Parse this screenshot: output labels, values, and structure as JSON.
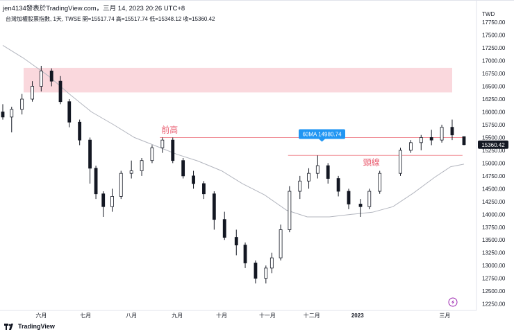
{
  "header": {
    "title": "jen4134發表於TradingView.com，三月 14, 2023 20:26 UTC+8",
    "symbol_line": "台灣加權股票指數, 1天, TWSE  開=15517.74  高=15517.74  低=15348.12  收=15360.42"
  },
  "footer": {
    "brand": "TradingView",
    "logo_icon": "tradingview-logo-icon"
  },
  "colors": {
    "up": "#131722",
    "down": "#131722",
    "zone": "#f8c8ce",
    "ma_line": "#b2b5be",
    "red_line": "#f08c94",
    "label_text": "#e95a6e",
    "ma_badge": "#2196f3",
    "price_badge": "#131722"
  },
  "chart_data": {
    "type": "candlestick",
    "currency_label": "TWD",
    "y_range": [
      12150,
      18050
    ],
    "y_ticks": [
      "17750.00",
      "17500.00",
      "17250.00",
      "17000.00",
      "16750.00",
      "16500.00",
      "16250.00",
      "16000.00",
      "15750.00",
      "15500.00",
      "15250.00",
      "15000.00",
      "14750.00",
      "14500.00",
      "14250.00",
      "14000.00",
      "13750.00",
      "13500.00",
      "13250.00",
      "13000.00",
      "12750.00",
      "12500.00",
      "12250.00"
    ],
    "y_tick_values": [
      17750,
      17500,
      17250,
      17000,
      16750,
      16500,
      16250,
      16000,
      15750,
      15500,
      15250,
      15000,
      14750,
      14500,
      14250,
      14000,
      13750,
      13500,
      13250,
      13000,
      12750,
      12500,
      12250
    ],
    "x_labels": [
      "六月",
      "七月",
      "八月",
      "九月",
      "十月",
      "十一月",
      "十二月",
      "2023",
      "三月"
    ],
    "x_label_dates": [
      "2022-06-01",
      "2022-07-01",
      "2022-08-01",
      "2022-09-01",
      "2022-10-01",
      "2022-11-01",
      "2022-12-01",
      "2023-01-01",
      "2023-03-01"
    ],
    "date_range": [
      "2022-05-06",
      "2023-03-14"
    ],
    "zone": {
      "from": 16380,
      "to": 16860,
      "start": "2022-05-06",
      "end": "2023-03-14"
    },
    "resistance_line": {
      "value": 15500,
      "start": "2022-08-25",
      "end": "2023-03-14",
      "label": "前高"
    },
    "neckline": {
      "value": 15150,
      "start": "2022-11-15",
      "end": "2023-03-13",
      "label": "頸線"
    },
    "ma": {
      "name": "60MA",
      "value": 14980.74,
      "label": "60MA 14980.74",
      "points": [
        [
          "2022-05-06",
          17300
        ],
        [
          "2022-05-20",
          17050
        ],
        [
          "2022-06-06",
          16700
        ],
        [
          "2022-06-20",
          16350
        ],
        [
          "2022-07-05",
          16000
        ],
        [
          "2022-07-20",
          15750
        ],
        [
          "2022-08-03",
          15500
        ],
        [
          "2022-08-18",
          15330
        ],
        [
          "2022-09-01",
          15170
        ],
        [
          "2022-09-15",
          15040
        ],
        [
          "2022-10-01",
          14850
        ],
        [
          "2022-10-15",
          14600
        ],
        [
          "2022-10-30",
          14380
        ],
        [
          "2022-11-14",
          14080
        ],
        [
          "2022-11-28",
          13950
        ],
        [
          "2022-12-13",
          13950
        ],
        [
          "2022-12-28",
          14000
        ],
        [
          "2023-01-11",
          14040
        ],
        [
          "2023-01-25",
          14150
        ],
        [
          "2023-02-08",
          14420
        ],
        [
          "2023-02-22",
          14720
        ],
        [
          "2023-03-05",
          14930
        ],
        [
          "2023-03-14",
          14980
        ]
      ]
    },
    "last_price": {
      "value": 15360.42,
      "label": "15360.42"
    },
    "ohlc": [
      [
        "2022-05-06",
        16000,
        16150,
        15850,
        15900
      ],
      [
        "2022-05-12",
        15900,
        16100,
        15600,
        16050
      ],
      [
        "2022-05-19",
        16050,
        16350,
        15950,
        16250
      ],
      [
        "2022-05-26",
        16250,
        16600,
        16200,
        16500
      ],
      [
        "2022-06-01",
        16500,
        16900,
        16400,
        16800
      ],
      [
        "2022-06-08",
        16800,
        16850,
        16500,
        16600
      ],
      [
        "2022-06-14",
        16600,
        16700,
        16150,
        16200
      ],
      [
        "2022-06-20",
        16200,
        16250,
        15700,
        15800
      ],
      [
        "2022-06-27",
        15800,
        15850,
        15350,
        15450
      ],
      [
        "2022-07-04",
        15450,
        15500,
        14600,
        14900
      ],
      [
        "2022-07-08",
        14900,
        14950,
        14300,
        14400
      ],
      [
        "2022-07-13",
        14400,
        14450,
        13950,
        14150
      ],
      [
        "2022-07-19",
        14150,
        14500,
        14050,
        14350
      ],
      [
        "2022-07-25",
        14350,
        14850,
        14300,
        14800
      ],
      [
        "2022-08-01",
        14800,
        15050,
        14700,
        14850
      ],
      [
        "2022-08-08",
        14850,
        15100,
        14750,
        15050
      ],
      [
        "2022-08-15",
        15050,
        15350,
        15000,
        15300
      ],
      [
        "2022-08-22",
        15300,
        15500,
        15200,
        15450
      ],
      [
        "2022-08-29",
        15450,
        15500,
        15000,
        15050
      ],
      [
        "2022-09-05",
        15050,
        15100,
        14700,
        14750
      ],
      [
        "2022-09-12",
        14750,
        14850,
        14500,
        14600
      ],
      [
        "2022-09-19",
        14600,
        14650,
        14300,
        14400
      ],
      [
        "2022-09-26",
        14400,
        14450,
        13700,
        13900
      ],
      [
        "2022-10-03",
        13900,
        14050,
        13500,
        13550
      ],
      [
        "2022-10-11",
        13550,
        13700,
        13200,
        13400
      ],
      [
        "2022-10-17",
        13400,
        13450,
        12950,
        13050
      ],
      [
        "2022-10-24",
        13050,
        13100,
        12650,
        12750
      ],
      [
        "2022-10-31",
        12750,
        13000,
        12650,
        12950
      ],
      [
        "2022-11-04",
        12950,
        13250,
        12850,
        13150
      ],
      [
        "2022-11-10",
        13150,
        13800,
        13100,
        13700
      ],
      [
        "2022-11-16",
        13700,
        14550,
        13650,
        14450
      ],
      [
        "2022-11-23",
        14450,
        14750,
        14300,
        14650
      ],
      [
        "2022-11-29",
        14650,
        14900,
        14500,
        14800
      ],
      [
        "2022-12-05",
        14800,
        15150,
        14700,
        14950
      ],
      [
        "2022-12-12",
        14950,
        15000,
        14600,
        14700
      ],
      [
        "2022-12-19",
        14700,
        14750,
        14350,
        14450
      ],
      [
        "2022-12-26",
        14450,
        14500,
        14100,
        14200
      ],
      [
        "2023-01-03",
        14200,
        14300,
        13950,
        14150
      ],
      [
        "2023-01-09",
        14150,
        14500,
        14100,
        14450
      ],
      [
        "2023-01-16",
        14450,
        14850,
        14400,
        14800
      ],
      [
        "2023-01-30",
        14800,
        15300,
        14750,
        15250
      ],
      [
        "2023-02-06",
        15250,
        15450,
        15200,
        15400
      ],
      [
        "2023-02-13",
        15400,
        15550,
        15250,
        15500
      ],
      [
        "2023-02-20",
        15500,
        15650,
        15350,
        15450
      ],
      [
        "2023-02-27",
        15450,
        15750,
        15400,
        15700
      ],
      [
        "2023-03-06",
        15700,
        15850,
        15450,
        15550
      ],
      [
        "2023-03-14",
        15517.74,
        15517.74,
        15348.12,
        15360.42
      ]
    ]
  }
}
